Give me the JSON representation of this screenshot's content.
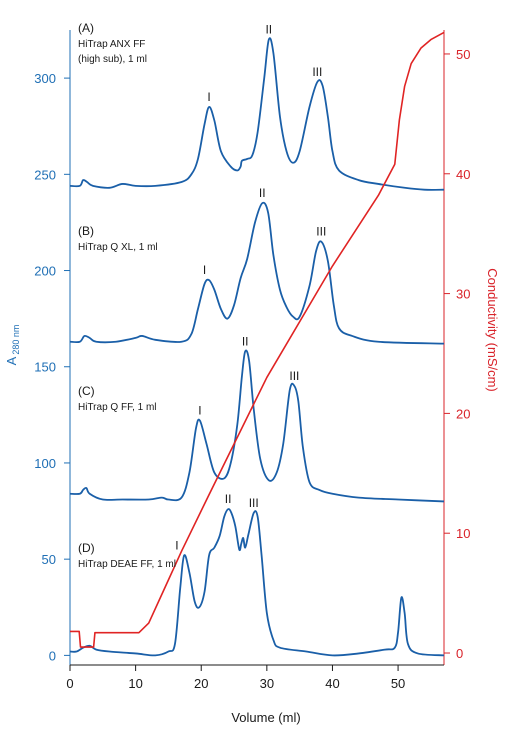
{
  "colors": {
    "left_axis": "#1f6fb5",
    "right_axis": "#d9232a",
    "trace": "#1a5fa8",
    "conductivity": "#e02424",
    "text": "#1a1a1a"
  },
  "chart_data": {
    "type": "line",
    "title": "",
    "xlabel": "Volume (ml)",
    "ylabel_left": {
      "main": "A",
      "sub": "280 nm"
    },
    "ylabel_right": "Conductivity (mS/cm)",
    "xlim": [
      0,
      57
    ],
    "ylim_left": [
      -5,
      325
    ],
    "ylim_right": [
      -1,
      52
    ],
    "x_ticks": [
      0,
      10,
      20,
      30,
      40,
      50
    ],
    "y_left_ticks": [
      0,
      50,
      100,
      150,
      200,
      250,
      300
    ],
    "y_right_ticks": [
      0,
      10,
      20,
      30,
      40,
      50
    ],
    "grid": false,
    "series": [
      {
        "panel": "A",
        "labels": [
          "(A)",
          "HiTrap ANX FF",
          "(high sub), 1 ml"
        ],
        "points": [
          [
            0,
            244
          ],
          [
            1.5,
            244
          ],
          [
            2,
            247
          ],
          [
            2.6,
            246
          ],
          [
            3.5,
            244
          ],
          [
            6,
            243
          ],
          [
            8,
            245
          ],
          [
            10,
            244
          ],
          [
            13,
            244
          ],
          [
            17,
            246
          ],
          [
            18.5,
            250
          ],
          [
            19.5,
            258
          ],
          [
            20.5,
            276
          ],
          [
            21.2,
            285
          ],
          [
            22,
            278
          ],
          [
            23,
            262
          ],
          [
            24.5,
            254
          ],
          [
            25.5,
            252
          ],
          [
            26,
            254
          ],
          [
            26.2,
            257
          ],
          [
            27,
            258
          ],
          [
            27.8,
            260
          ],
          [
            28.6,
            272
          ],
          [
            29.6,
            300
          ],
          [
            30.3,
            320
          ],
          [
            31,
            313
          ],
          [
            32,
            280
          ],
          [
            33,
            262
          ],
          [
            34,
            256
          ],
          [
            35,
            262
          ],
          [
            36.5,
            285
          ],
          [
            37.7,
            298
          ],
          [
            38.5,
            296
          ],
          [
            39.3,
            280
          ],
          [
            40,
            262
          ],
          [
            41,
            252
          ],
          [
            44,
            247
          ],
          [
            47,
            245
          ],
          [
            51,
            243
          ],
          [
            54,
            242
          ],
          [
            57,
            242
          ]
        ],
        "peak_labels": [
          {
            "text": "I",
            "x": 21.2
          },
          {
            "text": "II",
            "x": 30.3
          },
          {
            "text": "III",
            "x": 37.7
          }
        ]
      },
      {
        "panel": "B",
        "labels": [
          "(B)",
          "HiTrap Q XL, 1 ml"
        ],
        "points": [
          [
            0,
            163
          ],
          [
            1.5,
            163
          ],
          [
            2.2,
            166
          ],
          [
            3,
            165
          ],
          [
            4,
            163
          ],
          [
            7,
            163
          ],
          [
            10,
            165
          ],
          [
            11,
            166
          ],
          [
            13,
            164
          ],
          [
            17,
            163
          ],
          [
            18.5,
            167
          ],
          [
            19.5,
            180
          ],
          [
            20.5,
            193
          ],
          [
            21.2,
            195
          ],
          [
            22,
            190
          ],
          [
            23,
            180
          ],
          [
            24,
            175
          ],
          [
            25,
            182
          ],
          [
            26,
            196
          ],
          [
            27,
            206
          ],
          [
            28.2,
            225
          ],
          [
            29.3,
            235
          ],
          [
            30.2,
            230
          ],
          [
            31,
            208
          ],
          [
            32,
            190
          ],
          [
            33,
            181
          ],
          [
            34,
            176
          ],
          [
            35,
            176
          ],
          [
            36.5,
            192
          ],
          [
            37.5,
            210
          ],
          [
            38.3,
            215
          ],
          [
            39.3,
            205
          ],
          [
            40.2,
            182
          ],
          [
            41,
            170
          ],
          [
            43,
            166
          ],
          [
            47,
            163
          ],
          [
            57,
            162
          ]
        ],
        "peak_labels": [
          {
            "text": "I",
            "x": 20.5
          },
          {
            "text": "II",
            "x": 29.3
          },
          {
            "text": "III",
            "x": 38.3
          }
        ]
      },
      {
        "panel": "C",
        "labels": [
          "(C)",
          "HiTrap Q FF, 1 ml"
        ],
        "points": [
          [
            0,
            84
          ],
          [
            1.5,
            84
          ],
          [
            2,
            86
          ],
          [
            2.5,
            87
          ],
          [
            3,
            84
          ],
          [
            5,
            81
          ],
          [
            8,
            81
          ],
          [
            12,
            81
          ],
          [
            14,
            82
          ],
          [
            15,
            81
          ],
          [
            17,
            82
          ],
          [
            18.2,
            95
          ],
          [
            19.2,
            118
          ],
          [
            19.8,
            122
          ],
          [
            20.8,
            110
          ],
          [
            22,
            95
          ],
          [
            23.5,
            92
          ],
          [
            24.5,
            100
          ],
          [
            25.5,
            120
          ],
          [
            26.2,
            145
          ],
          [
            26.7,
            158
          ],
          [
            27.3,
            153
          ],
          [
            28,
            128
          ],
          [
            29,
            102
          ],
          [
            30.3,
            91
          ],
          [
            31.5,
            95
          ],
          [
            32.5,
            110
          ],
          [
            33.5,
            138
          ],
          [
            34.2,
            140
          ],
          [
            34.8,
            132
          ],
          [
            35.5,
            108
          ],
          [
            36.5,
            90
          ],
          [
            38,
            86
          ],
          [
            40,
            84
          ],
          [
            44,
            82
          ],
          [
            50,
            81
          ],
          [
            57,
            80
          ]
        ],
        "peak_labels": [
          {
            "text": "I",
            "x": 19.8
          },
          {
            "text": "II",
            "x": 26.7
          },
          {
            "text": "III",
            "x": 34.2
          }
        ]
      },
      {
        "panel": "D",
        "labels": [
          "(D)",
          "HiTrap DEAE FF, 1 ml"
        ],
        "points": [
          [
            0,
            2
          ],
          [
            1,
            2
          ],
          [
            2,
            4
          ],
          [
            3,
            5
          ],
          [
            4,
            3
          ],
          [
            6,
            2
          ],
          [
            10,
            1
          ],
          [
            13,
            0
          ],
          [
            15,
            2
          ],
          [
            16,
            6
          ],
          [
            16.8,
            35
          ],
          [
            17.4,
            52
          ],
          [
            18.2,
            43
          ],
          [
            19,
            28
          ],
          [
            19.7,
            25
          ],
          [
            20.5,
            33
          ],
          [
            21.2,
            52
          ],
          [
            22,
            56
          ],
          [
            22.8,
            62
          ],
          [
            23.5,
            72
          ],
          [
            24.1,
            76
          ],
          [
            24.6,
            74
          ],
          [
            25.2,
            67
          ],
          [
            25.8,
            55
          ],
          [
            26.1,
            58
          ],
          [
            26.4,
            61
          ],
          [
            26.7,
            56
          ],
          [
            27.2,
            63
          ],
          [
            28,
            74
          ],
          [
            28.6,
            72
          ],
          [
            29.2,
            52
          ],
          [
            30,
            22
          ],
          [
            31,
            8
          ],
          [
            32,
            4
          ],
          [
            36,
            2
          ],
          [
            40,
            0
          ],
          [
            44,
            1
          ],
          [
            48,
            3
          ],
          [
            49.5,
            4
          ],
          [
            50,
            12
          ],
          [
            50.5,
            30
          ],
          [
            51,
            22
          ],
          [
            51.5,
            6
          ],
          [
            53,
            1
          ],
          [
            57,
            0
          ]
        ],
        "peak_labels": [
          {
            "text": "I",
            "x": 16.3
          },
          {
            "text": "II",
            "x": 24.1
          },
          {
            "text": "III",
            "x": 28
          }
        ]
      }
    ],
    "conductivity": {
      "points": [
        [
          0,
          1.8
        ],
        [
          1.4,
          1.8
        ],
        [
          1.6,
          0.5
        ],
        [
          3.6,
          0.5
        ],
        [
          3.8,
          1.7
        ],
        [
          10.5,
          1.7
        ],
        [
          12,
          2.5
        ],
        [
          14.5,
          5.5
        ],
        [
          17,
          8.5
        ],
        [
          21,
          13
        ],
        [
          30,
          23
        ],
        [
          40,
          32.3
        ],
        [
          47,
          38.2
        ],
        [
          49.5,
          40.8
        ],
        [
          50.2,
          44.5
        ],
        [
          51,
          47.3
        ],
        [
          52,
          49.2
        ],
        [
          53.5,
          50.5
        ],
        [
          55,
          51.2
        ],
        [
          57,
          51.8
        ]
      ]
    }
  }
}
